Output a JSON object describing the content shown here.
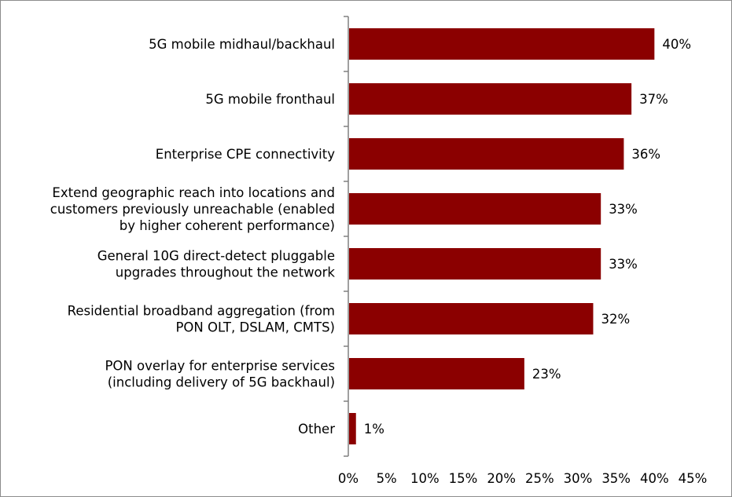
{
  "chart_data": {
    "type": "bar",
    "orientation": "horizontal",
    "categories": [
      [
        "5G mobile midhaul/backhaul"
      ],
      [
        "5G mobile fronthaul"
      ],
      [
        "Enterprise CPE connectivity"
      ],
      [
        "Extend geographic reach into locations and",
        "customers previously unreachable (enabled",
        "by higher coherent performance)"
      ],
      [
        "General 10G direct-detect pluggable",
        "upgrades throughout the network"
      ],
      [
        "Residential broadband aggregation (from",
        "PON OLT, DSLAM, CMTS)"
      ],
      [
        "PON overlay for enterprise services",
        "(including delivery of 5G backhaul)"
      ],
      [
        "Other"
      ]
    ],
    "values": [
      40,
      37,
      36,
      33,
      33,
      32,
      23,
      1
    ],
    "data_labels": [
      "40%",
      "37%",
      "36%",
      "33%",
      "33%",
      "32%",
      "23%",
      "1%"
    ],
    "xlim": [
      0,
      45
    ],
    "x_ticks": [
      0,
      5,
      10,
      15,
      20,
      25,
      30,
      35,
      40,
      45
    ],
    "x_tick_labels": [
      "0%",
      "5%",
      "10%",
      "15%",
      "20%",
      "25%",
      "30%",
      "35%",
      "40%",
      "45%"
    ],
    "bar_color": "#8b0000",
    "grid": false,
    "legend": false
  }
}
